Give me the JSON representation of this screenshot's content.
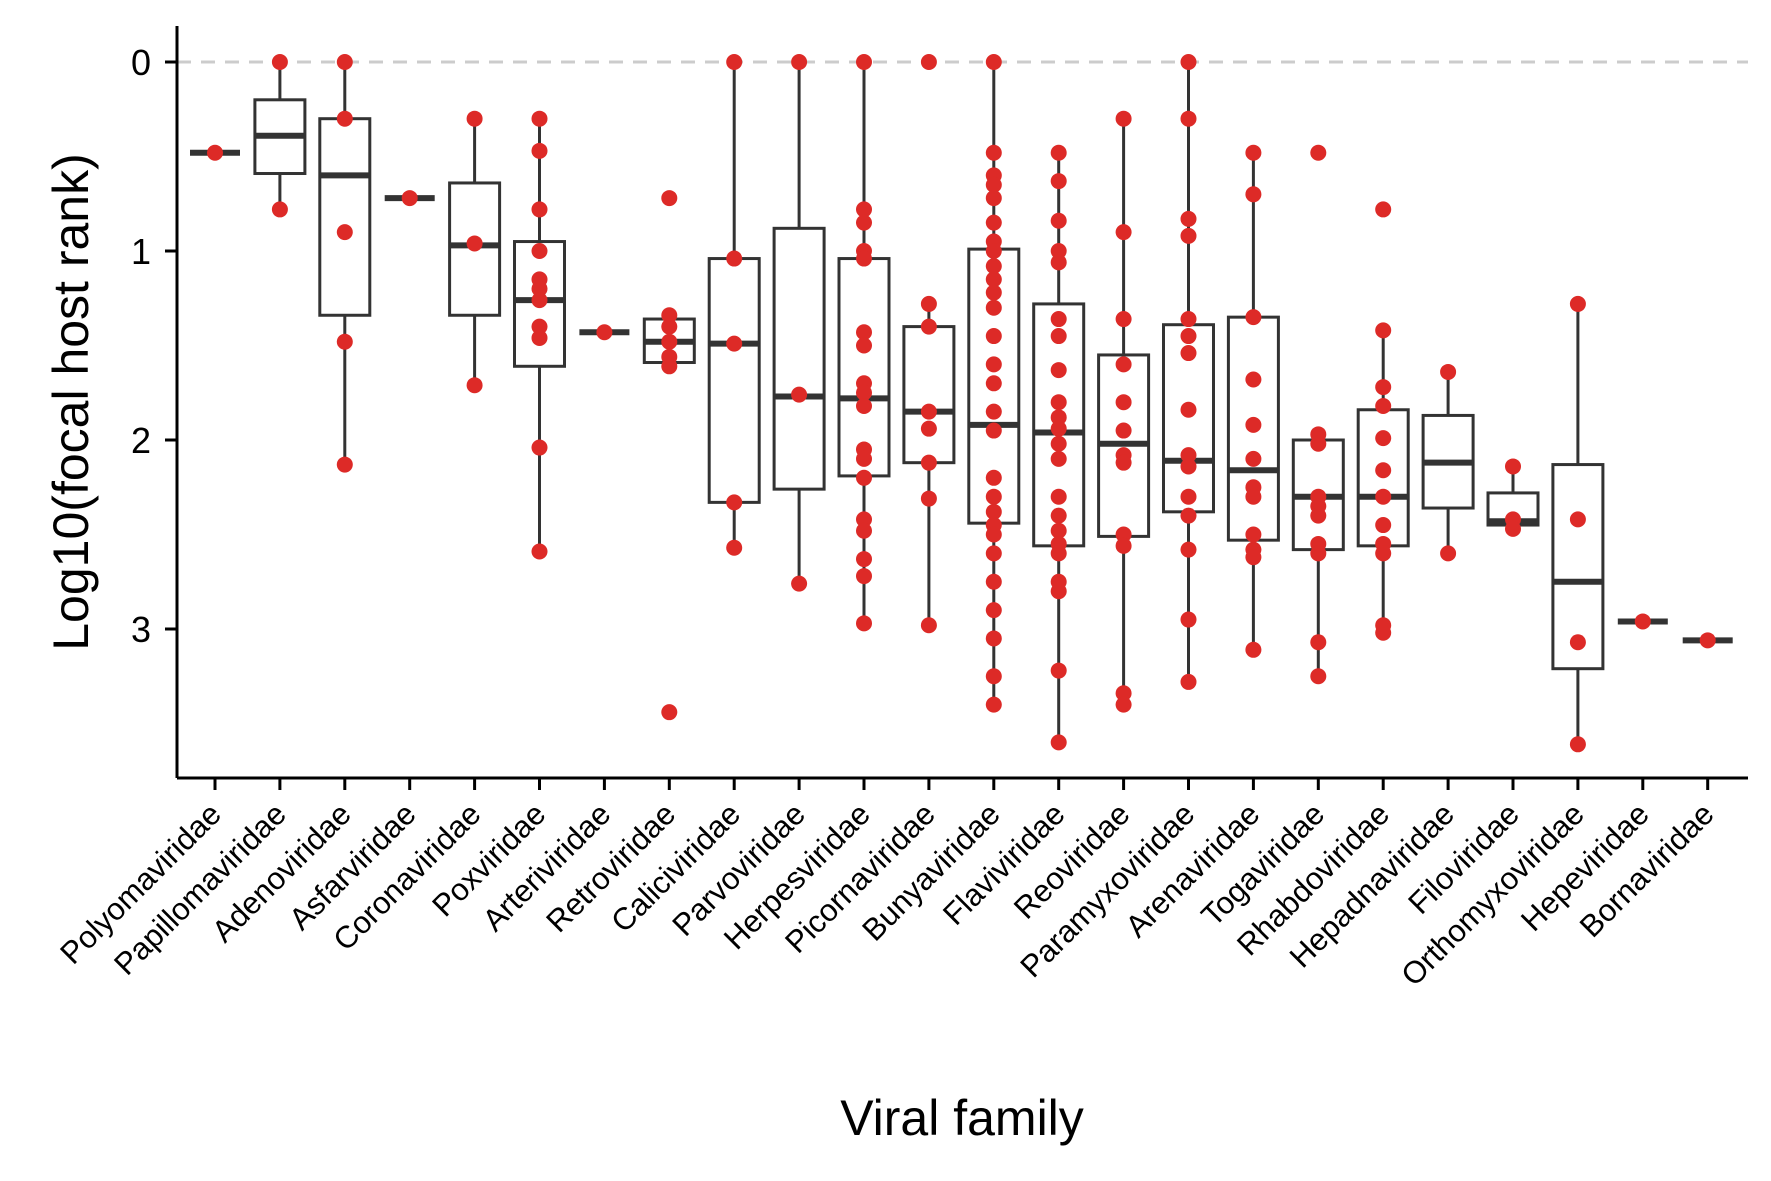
{
  "chart_data": {
    "type": "box",
    "xlabel": "Viral family",
    "ylabel": "Log10(focal host rank)",
    "y_reversed": true,
    "ylim": [
      0,
      3.75
    ],
    "yticks": [
      0,
      1,
      2,
      3
    ],
    "reference_line": {
      "y": 0,
      "style": "dashed",
      "color": "#cccccc"
    },
    "grid": false,
    "point_color": "#dd2a27",
    "box_color": "#333333",
    "categories": [
      "Polyomaviridae",
      "Papillomaviridae",
      "Adenoviridae",
      "Asfarviridae",
      "Coronaviridae",
      "Poxviridae",
      "Arteriviridae",
      "Retroviridae",
      "Caliciviridae",
      "Parvoviridae",
      "Herpesviridae",
      "Picornaviridae",
      "Bunyaviridae",
      "Flaviviridae",
      "Reoviridae",
      "Paramyxoviridae",
      "Arenaviridae",
      "Togaviridae",
      "Rhabdoviridae",
      "Hepadnaviridae",
      "Filoviridae",
      "Orthomyxoviridae",
      "Hepeviridae",
      "Bornaviridae"
    ],
    "boxes": [
      {
        "whisker_low": 0.48,
        "q1": 0.48,
        "median": 0.48,
        "q3": 0.48,
        "whisker_high": 0.48
      },
      {
        "whisker_low": 0.0,
        "q1": 0.2,
        "median": 0.39,
        "q3": 0.59,
        "whisker_high": 0.78
      },
      {
        "whisker_low": 0.0,
        "q1": 0.3,
        "median": 0.6,
        "q3": 1.34,
        "whisker_high": 2.13
      },
      {
        "whisker_low": 0.72,
        "q1": 0.72,
        "median": 0.72,
        "q3": 0.72,
        "whisker_high": 0.72
      },
      {
        "whisker_low": 0.3,
        "q1": 0.64,
        "median": 0.97,
        "q3": 1.34,
        "whisker_high": 1.71
      },
      {
        "whisker_low": 0.3,
        "q1": 0.95,
        "median": 1.26,
        "q3": 1.61,
        "whisker_high": 2.59
      },
      {
        "whisker_low": 1.43,
        "q1": 1.43,
        "median": 1.43,
        "q3": 1.43,
        "whisker_high": 1.43
      },
      {
        "whisker_low": 1.34,
        "q1": 1.36,
        "median": 1.48,
        "q3": 1.59,
        "whisker_high": 1.61
      },
      {
        "whisker_low": 0.0,
        "q1": 1.04,
        "median": 1.49,
        "q3": 2.33,
        "whisker_high": 2.57
      },
      {
        "whisker_low": 0.0,
        "q1": 0.88,
        "median": 1.77,
        "q3": 2.26,
        "whisker_high": 2.76
      },
      {
        "whisker_low": 0.0,
        "q1": 1.04,
        "median": 1.78,
        "q3": 2.19,
        "whisker_high": 2.97
      },
      {
        "whisker_low": 1.28,
        "q1": 1.4,
        "median": 1.85,
        "q3": 2.12,
        "whisker_high": 2.98
      },
      {
        "whisker_low": 0.0,
        "q1": 0.99,
        "median": 1.92,
        "q3": 2.44,
        "whisker_high": 3.4
      },
      {
        "whisker_low": 0.48,
        "q1": 1.28,
        "median": 1.96,
        "q3": 2.56,
        "whisker_high": 3.6
      },
      {
        "whisker_low": 0.3,
        "q1": 1.55,
        "median": 2.02,
        "q3": 2.51,
        "whisker_high": 3.4
      },
      {
        "whisker_low": 0.0,
        "q1": 1.39,
        "median": 2.11,
        "q3": 2.38,
        "whisker_high": 3.28
      },
      {
        "whisker_low": 0.48,
        "q1": 1.35,
        "median": 2.16,
        "q3": 2.53,
        "whisker_high": 3.11
      },
      {
        "whisker_low": 1.97,
        "q1": 2.0,
        "median": 2.3,
        "q3": 2.58,
        "whisker_high": 3.25
      },
      {
        "whisker_low": 1.42,
        "q1": 1.84,
        "median": 2.3,
        "q3": 2.56,
        "whisker_high": 3.02
      },
      {
        "whisker_low": 1.64,
        "q1": 1.87,
        "median": 2.12,
        "q3": 2.36,
        "whisker_high": 2.6
      },
      {
        "whisker_low": 2.14,
        "q1": 2.28,
        "median": 2.43,
        "q3": 2.45,
        "whisker_high": 2.47
      },
      {
        "whisker_low": 1.28,
        "q1": 2.13,
        "median": 2.75,
        "q3": 3.21,
        "whisker_high": 3.61
      },
      {
        "whisker_low": 2.96,
        "q1": 2.96,
        "median": 2.96,
        "q3": 2.96,
        "whisker_high": 2.96
      },
      {
        "whisker_low": 3.06,
        "q1": 3.06,
        "median": 3.06,
        "q3": 3.06,
        "whisker_high": 3.06
      }
    ],
    "points": [
      [
        0.48
      ],
      [
        0.0,
        0.78
      ],
      [
        0.0,
        0.3,
        0.9,
        1.48,
        2.13
      ],
      [
        0.72
      ],
      [
        0.3,
        0.96,
        1.71
      ],
      [
        0.3,
        0.47,
        0.78,
        1.0,
        1.15,
        1.2,
        1.26,
        1.4,
        1.46,
        2.04,
        2.59
      ],
      [
        1.43
      ],
      [
        0.72,
        1.34,
        1.4,
        1.48,
        1.56,
        1.61,
        3.44
      ],
      [
        0.0,
        1.04,
        1.49,
        2.33,
        2.57
      ],
      [
        0.0,
        1.76,
        2.76
      ],
      [
        0.0,
        0.78,
        0.85,
        1.0,
        1.04,
        1.43,
        1.5,
        1.7,
        1.75,
        1.82,
        2.05,
        2.1,
        2.2,
        2.42,
        2.48,
        2.63,
        2.72,
        2.97
      ],
      [
        0.0,
        1.28,
        1.4,
        1.85,
        1.94,
        2.12,
        2.31,
        2.98
      ],
      [
        0.0,
        0.48,
        0.6,
        0.65,
        0.72,
        0.85,
        0.95,
        1.0,
        1.08,
        1.15,
        1.22,
        1.3,
        1.45,
        1.6,
        1.7,
        1.85,
        1.95,
        2.2,
        2.3,
        2.38,
        2.45,
        2.5,
        2.6,
        2.75,
        2.9,
        3.05,
        3.25,
        3.4
      ],
      [
        0.48,
        0.63,
        0.84,
        1.0,
        1.06,
        1.36,
        1.45,
        1.63,
        1.8,
        1.88,
        1.94,
        2.02,
        2.1,
        2.3,
        2.4,
        2.48,
        2.55,
        2.6,
        2.75,
        2.8,
        3.22,
        3.6
      ],
      [
        0.3,
        0.9,
        1.36,
        1.6,
        1.8,
        1.95,
        2.08,
        2.12,
        2.5,
        2.56,
        3.34,
        3.4
      ],
      [
        0.0,
        0.3,
        0.83,
        0.92,
        1.36,
        1.45,
        1.54,
        1.84,
        2.08,
        2.14,
        2.3,
        2.4,
        2.58,
        2.95,
        3.28
      ],
      [
        0.48,
        0.7,
        1.35,
        1.68,
        1.92,
        2.1,
        2.25,
        2.3,
        2.5,
        2.58,
        2.62,
        3.11
      ],
      [
        0.48,
        1.97,
        2.02,
        2.3,
        2.35,
        2.4,
        2.55,
        2.6,
        3.07,
        3.25
      ],
      [
        0.78,
        1.42,
        1.72,
        1.82,
        1.99,
        2.16,
        2.3,
        2.45,
        2.55,
        2.6,
        2.98,
        3.02
      ],
      [
        1.64,
        2.6
      ],
      [
        2.14,
        2.42,
        2.47
      ],
      [
        1.28,
        2.42,
        3.07,
        3.61
      ],
      [
        2.96
      ],
      [
        3.06
      ]
    ]
  }
}
